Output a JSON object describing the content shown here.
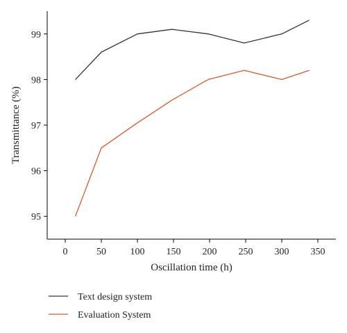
{
  "chart_data": {
    "type": "line",
    "xlabel": "Oscillation time (h)",
    "ylabel": "Transmittance (%)",
    "xlim": [
      -25,
      375
    ],
    "ylim": [
      94.5,
      99.5
    ],
    "xticks": [
      0,
      50,
      100,
      150,
      200,
      250,
      300,
      350
    ],
    "yticks": [
      95,
      96,
      97,
      98,
      99
    ],
    "grid": false,
    "legend_position": "bottom-left",
    "series": [
      {
        "name": "Text design system",
        "color": "#333333",
        "x": [
          14,
          50,
          100,
          148,
          198,
          248,
          300,
          338
        ],
        "y": [
          98.0,
          98.6,
          99.0,
          99.1,
          99.0,
          98.8,
          99.0,
          99.3
        ]
      },
      {
        "name": "Evaluation System",
        "color": "#d9572b",
        "x": [
          14,
          50,
          100,
          148,
          198,
          248,
          300,
          338
        ],
        "y": [
          95.0,
          96.5,
          97.05,
          97.55,
          98.0,
          98.2,
          98.0,
          98.2
        ]
      }
    ]
  }
}
